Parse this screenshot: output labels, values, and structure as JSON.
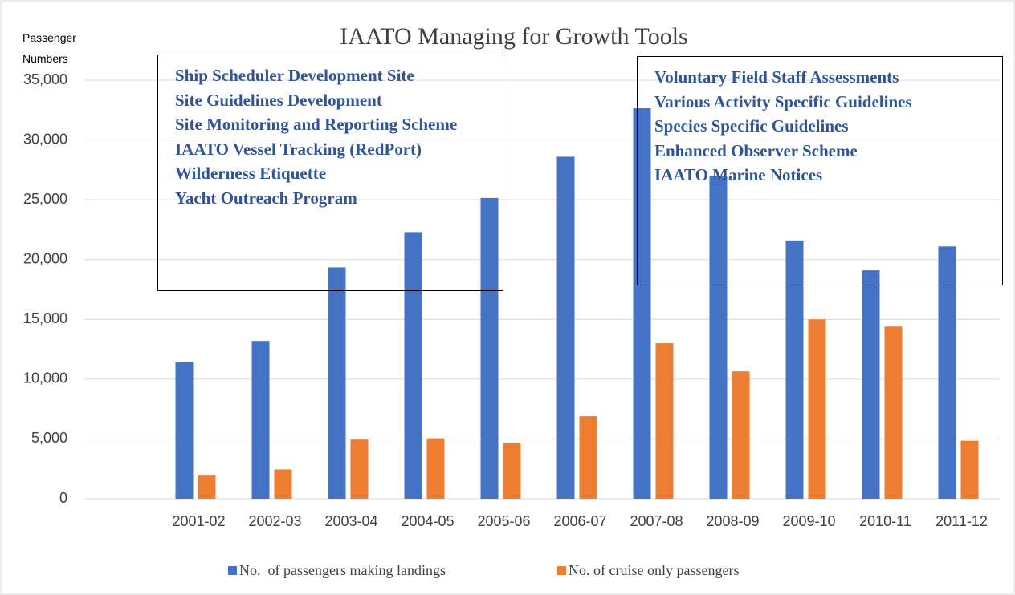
{
  "chart_data": {
    "type": "bar",
    "title": "IAATO Managing for Growth Tools",
    "y_label": "Passenger Numbers",
    "categories": [
      null,
      "2001-02",
      "2002-03",
      "2003-04",
      "2004-05",
      "2005-06",
      "2006-07",
      "2007-08",
      "2008-09",
      "2009-10",
      "2010-11",
      "2011-12"
    ],
    "series": [
      {
        "name": "No.  of passengers making landings",
        "color": "#4472c4",
        "values": [
          null,
          11400,
          13200,
          19350,
          22300,
          25150,
          28600,
          32650,
          27000,
          21600,
          19100,
          21100
        ]
      },
      {
        "name": "No. of cruise only passengers",
        "color": "#ed7d31",
        "values": [
          null,
          2000,
          2450,
          4950,
          5050,
          4650,
          6900,
          13000,
          10650,
          15000,
          14400,
          4850
        ]
      }
    ],
    "ylim": [
      0,
      35000
    ],
    "yticks": [
      0,
      {
        "value": 5000,
        "label": "5,000"
      },
      {
        "value": 10000,
        "label": "10,000"
      },
      {
        "value": 15000,
        "label": "15,000"
      },
      {
        "value": 20000,
        "label": "20,000"
      },
      {
        "value": 25000,
        "label": "25,000"
      },
      {
        "value": 30000,
        "label": "30,000"
      },
      {
        "value": 35000,
        "label": "35,000"
      }
    ],
    "grid": true,
    "legend": "bottom",
    "annotations": [
      {
        "items": [
          "Ship Scheduler Development Site",
          "Site Guidelines Development",
          "Site Monitoring and Reporting Scheme",
          "IAATO Vessel Tracking (RedPort)",
          "Wilderness Etiquette",
          "Yacht Outreach Program"
        ]
      },
      {
        "items": [
          "Voluntary Field Staff Assessments",
          "Various Activity Specific Guidelines",
          "Species Specific Guidelines",
          "Enhanced Observer Scheme",
          "IAATO Marine Notices"
        ]
      }
    ]
  }
}
